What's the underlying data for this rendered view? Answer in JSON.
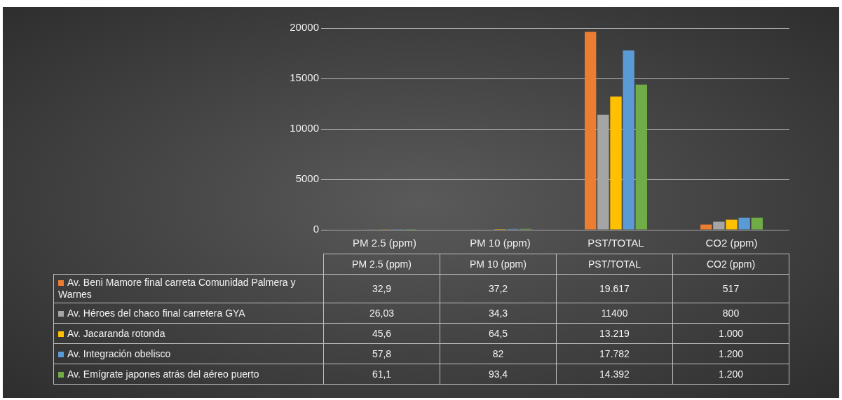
{
  "chart_data": {
    "type": "bar",
    "categories": [
      "PM 2.5 (ppm)",
      "PM 10 (ppm)",
      "PST/TOTAL",
      "CO2 (ppm)"
    ],
    "series": [
      {
        "name": "Av. Beni Mamore final carreta Comunidad Palmera y Warnes",
        "color": "#ed7d31",
        "values": [
          32.9,
          37.2,
          19617,
          517
        ],
        "value_labels": [
          "32,9",
          "37,2",
          "19.617",
          "517"
        ]
      },
      {
        "name": "Av. Héroes del chaco final carretera GYA",
        "color": "#a5a5a5",
        "values": [
          26.03,
          34.3,
          11400,
          800
        ],
        "value_labels": [
          "26,03",
          "34,3",
          "11400",
          "800"
        ]
      },
      {
        "name": "Av. Jacaranda rotonda",
        "color": "#ffc000",
        "values": [
          45.6,
          64.5,
          13219,
          1000
        ],
        "value_labels": [
          "45,6",
          "64,5",
          "13.219",
          "1.000"
        ]
      },
      {
        "name": "Av. Integración obelisco",
        "color": "#5b9bd5",
        "values": [
          57.8,
          82,
          17782,
          1200
        ],
        "value_labels": [
          "57,8",
          "82",
          "17.782",
          "1.200"
        ]
      },
      {
        "name": "Av.  Emígrate japones atrás del aéreo puerto",
        "color": "#70ad47",
        "values": [
          61.1,
          93.4,
          14392,
          1200
        ],
        "value_labels": [
          "61,1",
          "93,4",
          "14.392",
          "1.200"
        ]
      }
    ],
    "ylim": [
      0,
      20000
    ],
    "yticks": [
      0,
      5000,
      10000,
      15000,
      20000
    ],
    "grid": "y",
    "legend": "bottom"
  }
}
